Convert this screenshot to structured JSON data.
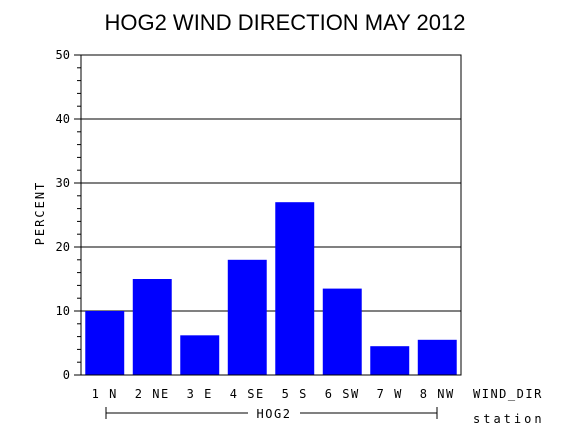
{
  "chart_data": {
    "type": "bar",
    "title": "HOG2 WIND DIRECTION MAY 2012",
    "ylabel": "PERCENT",
    "xlabel": "WIND_DIR",
    "group_axis_label": "station",
    "group_label": "HOG2",
    "categories": [
      "1 N",
      "2 NE",
      "3 E",
      "4 SE",
      "5 S",
      "6 SW",
      "7 W",
      "8 NW"
    ],
    "values": [
      10,
      15,
      6.2,
      18,
      27,
      13.5,
      4.5,
      5.5
    ],
    "ylim": [
      0,
      50
    ],
    "yticks": [
      "0",
      "10",
      "20",
      "30",
      "40",
      "50"
    ],
    "grid": true,
    "bar_color": "#0000ff"
  }
}
